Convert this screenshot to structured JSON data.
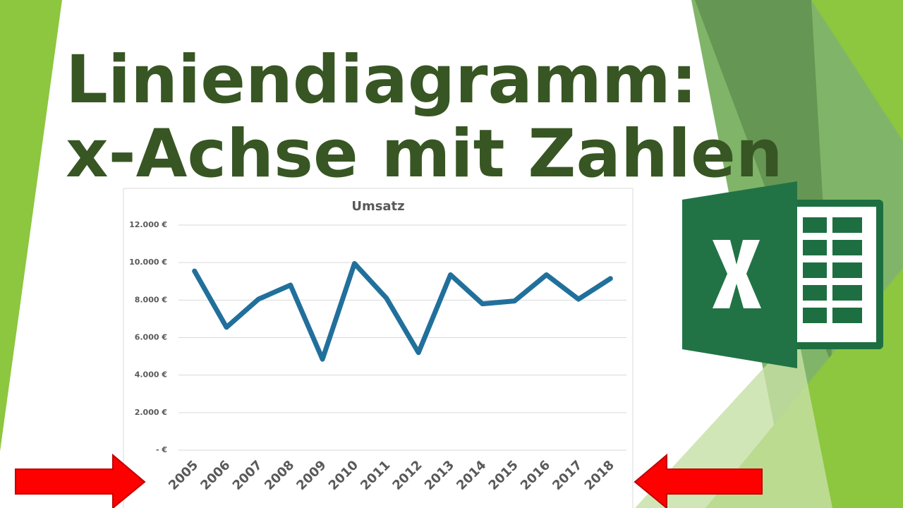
{
  "heading": [
    "Liniendiagramm:",
    "x-Achse mit Zahlen"
  ],
  "chart_data": {
    "type": "line",
    "title": "Umsatz",
    "categories": [
      "2005",
      "2006",
      "2007",
      "2008",
      "2009",
      "2010",
      "2011",
      "2012",
      "2013",
      "2014",
      "2015",
      "2016",
      "2017",
      "2018"
    ],
    "values": [
      9550,
      6550,
      8050,
      8800,
      4850,
      9950,
      8100,
      5200,
      9350,
      7800,
      7950,
      9350,
      8050,
      9150
    ],
    "color": "#21709b",
    "ylim": [
      0,
      12000
    ],
    "yticks": [
      {
        "value": 0,
        "label": "-   €"
      },
      {
        "value": 2000,
        "label": "2.000 €"
      },
      {
        "value": 4000,
        "label": "4.000 €"
      },
      {
        "value": 6000,
        "label": "6.000 €"
      },
      {
        "value": 8000,
        "label": "8.000 €"
      },
      {
        "value": 10000,
        "label": "10.000 €"
      },
      {
        "value": 12000,
        "label": "12.000 €"
      }
    ],
    "grid": true
  }
}
